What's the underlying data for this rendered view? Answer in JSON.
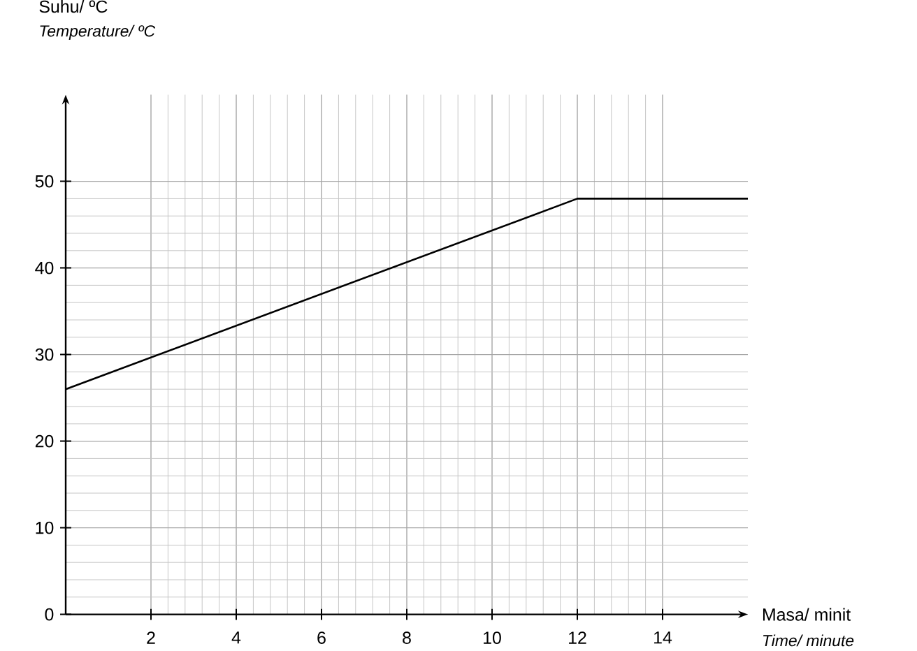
{
  "chart_data": {
    "type": "line",
    "ylabel": "Suhu/ ºC",
    "xlabel": "Masa/ minit",
    "annotations": [
      "Temperature/ ºC",
      "Time/ minute"
    ],
    "x": [
      0,
      12,
      16
    ],
    "series": [
      {
        "color": "#000000",
        "values": [
          26,
          48,
          48
        ]
      }
    ],
    "xlim": [
      0,
      16
    ],
    "ylim": [
      0,
      60
    ],
    "xticks": [
      2,
      4,
      6,
      8,
      10,
      12,
      14
    ],
    "yticks": [
      0,
      10,
      20,
      30,
      40,
      50
    ],
    "grid": true,
    "marker": "none",
    "line_style": "solid"
  }
}
